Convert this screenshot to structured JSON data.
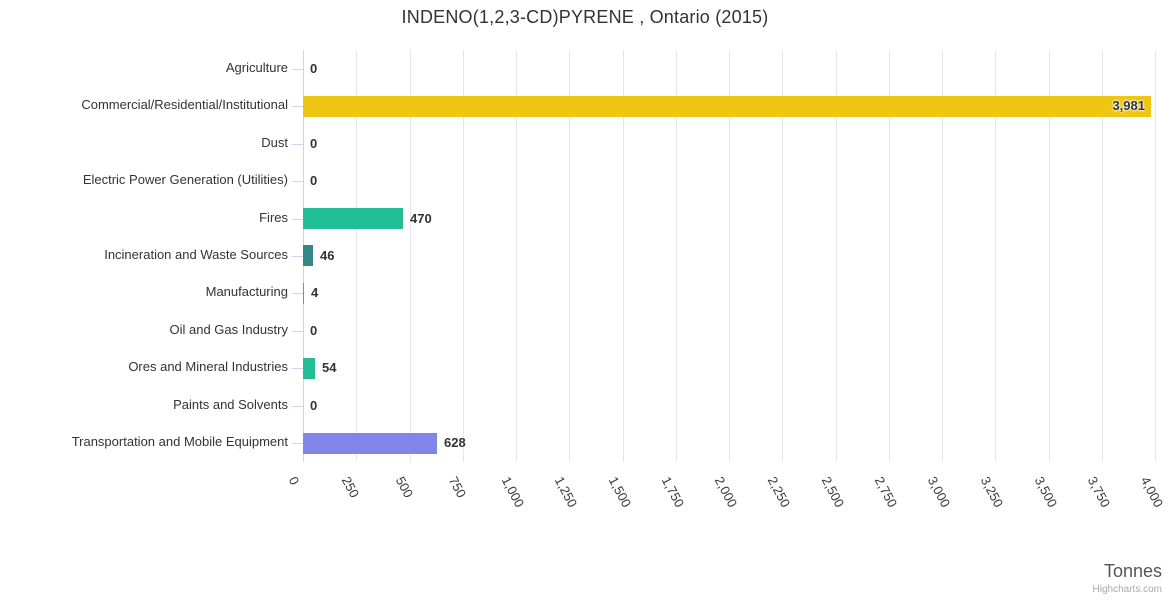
{
  "chart_data": {
    "type": "bar",
    "orientation": "horizontal",
    "title": "INDENO(1,2,3-CD)PYRENE , Ontario (2015)",
    "categories": [
      "Agriculture",
      "Commercial/Residential/Institutional",
      "Dust",
      "Electric Power Generation (Utilities)",
      "Fires",
      "Incineration and Waste Sources",
      "Manufacturing",
      "Oil and Gas Industry",
      "Ores and Mineral Industries",
      "Paints and Solvents",
      "Transportation and Mobile Equipment"
    ],
    "values": [
      0,
      3981,
      0,
      0,
      470,
      46,
      4,
      0,
      54,
      0,
      628
    ],
    "value_labels": [
      "0",
      "3,981",
      "0",
      "0",
      "470",
      "46",
      "4",
      "0",
      "54",
      "0",
      "628"
    ],
    "bar_colors": [
      "#21BE95",
      "#EFC613",
      "#21BE95",
      "#21BE95",
      "#21BE95",
      "#338787",
      "#21BE95",
      "#21BE95",
      "#21BE95",
      "#21BE95",
      "#8285E8"
    ],
    "axis": {
      "min": 0,
      "max": 4000,
      "tick_interval": 250,
      "tick_labels": [
        "0",
        "250",
        "500",
        "750",
        "1,000",
        "1,250",
        "1,500",
        "1,750",
        "2,000",
        "2,250",
        "2,500",
        "2,750",
        "3,000",
        "3,250",
        "3,500",
        "3,750",
        "4,000"
      ]
    },
    "axis_title": "Tonnes",
    "credit": "Highcharts.com",
    "grid": true,
    "legend": "none",
    "colors": {
      "grid": "#E6E6E6",
      "axis_line": "#CCD6EB",
      "text": "#333333",
      "axis_title_text": "#555555",
      "credit_text": "#A9A9A9"
    }
  }
}
